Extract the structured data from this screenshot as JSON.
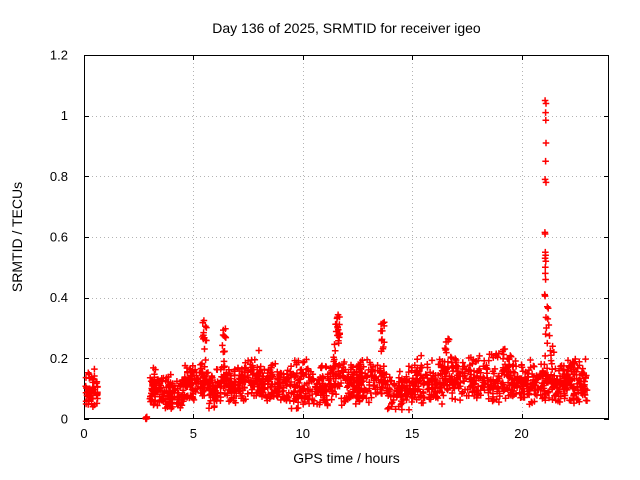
{
  "chart_data": {
    "type": "scatter",
    "title": "Day 136 of 2025, SRMTID for receiver igeo",
    "xlabel": "GPS time / hours",
    "ylabel": "SRMTID / TECUs",
    "xlim": [
      0,
      24
    ],
    "ylim": [
      0,
      1.2
    ],
    "x_ticks": [
      {
        "v": 0,
        "label": "0"
      },
      {
        "v": 5,
        "label": "5"
      },
      {
        "v": 10,
        "label": "10"
      },
      {
        "v": 15,
        "label": "15"
      },
      {
        "v": 20,
        "label": "20"
      }
    ],
    "y_ticks": [
      {
        "v": 0,
        "label": "0"
      },
      {
        "v": 0.2,
        "label": "0.2"
      },
      {
        "v": 0.4,
        "label": "0.4"
      },
      {
        "v": 0.6,
        "label": "0.6"
      },
      {
        "v": 0.8,
        "label": "0.8"
      },
      {
        "v": 1,
        "label": "1"
      },
      {
        "v": 1.2,
        "label": "1.2"
      }
    ],
    "grid": {
      "show": true,
      "color": "#b4b4b4",
      "style": "dotted"
    },
    "legend": "none",
    "marker": {
      "shape": "plus",
      "color": "#ff0000",
      "size": 7
    },
    "series": [
      {
        "name": "SRMTID",
        "description": "Dense noisy band of + markers, mostly 0.05-0.2 TECUs from 3h to 23h, small cluster 0.05-0.6h, isolated points at 0 near 2.85h, narrow spikes near 5.5h (0.32), 6.4h (0.30), 11.6h (0.35), 13.6h (0.32), 16.6h (0.27) and a large spike at 21.1h reaching 1.05",
        "seed": 1360,
        "band_segments": [
          {
            "x": [
              0.05,
              0.62
            ],
            "y": [
              0.04,
              0.17
            ],
            "n": 55
          },
          {
            "x": [
              3.0,
              3.3
            ],
            "y": [
              0.04,
              0.18
            ],
            "n": 40
          },
          {
            "x": [
              3.3,
              4.6
            ],
            "y": [
              0.03,
              0.16
            ],
            "n": 110
          },
          {
            "x": [
              4.6,
              5.3
            ],
            "y": [
              0.05,
              0.21
            ],
            "n": 60
          },
          {
            "x": [
              5.3,
              5.65
            ],
            "y": [
              0.06,
              0.2
            ],
            "n": 35,
            "tail_y": [
              0.2,
              0.325
            ],
            "tail_n": 12
          },
          {
            "x": [
              5.65,
              6.25
            ],
            "y": [
              0.03,
              0.17
            ],
            "n": 55
          },
          {
            "x": [
              6.25,
              6.55
            ],
            "y": [
              0.07,
              0.2
            ],
            "n": 30,
            "tail_y": [
              0.2,
              0.3
            ],
            "tail_n": 10
          },
          {
            "x": [
              6.55,
              7.4
            ],
            "y": [
              0.05,
              0.2
            ],
            "n": 75
          },
          {
            "x": [
              7.4,
              8.1
            ],
            "y": [
              0.06,
              0.23
            ],
            "n": 65
          },
          {
            "x": [
              8.1,
              9.2
            ],
            "y": [
              0.05,
              0.2
            ],
            "n": 95
          },
          {
            "x": [
              9.2,
              10.2
            ],
            "y": [
              0.03,
              0.21
            ],
            "n": 90
          },
          {
            "x": [
              10.2,
              11.4
            ],
            "y": [
              0.04,
              0.19
            ],
            "n": 100
          },
          {
            "x": [
              11.4,
              11.75
            ],
            "y": [
              0.08,
              0.22
            ],
            "n": 32,
            "tail_y": [
              0.22,
              0.35
            ],
            "tail_n": 20
          },
          {
            "x": [
              11.75,
              12.45
            ],
            "y": [
              0.04,
              0.2
            ],
            "n": 60
          },
          {
            "x": [
              12.45,
              13.4
            ],
            "y": [
              0.05,
              0.22
            ],
            "n": 85
          },
          {
            "x": [
              13.4,
              13.8
            ],
            "y": [
              0.06,
              0.2
            ],
            "n": 30,
            "tail_y": [
              0.2,
              0.325
            ],
            "tail_n": 12
          },
          {
            "x": [
              13.8,
              15.05
            ],
            "y": [
              0.02,
              0.18
            ],
            "n": 100
          },
          {
            "x": [
              15.05,
              16.45
            ],
            "y": [
              0.04,
              0.21
            ],
            "n": 115
          },
          {
            "x": [
              16.45,
              16.75
            ],
            "y": [
              0.07,
              0.2
            ],
            "n": 27,
            "tail_y": [
              0.2,
              0.27
            ],
            "tail_n": 8
          },
          {
            "x": [
              16.75,
              18.35
            ],
            "y": [
              0.05,
              0.23
            ],
            "n": 130
          },
          {
            "x": [
              18.35,
              19.55
            ],
            "y": [
              0.05,
              0.25
            ],
            "n": 100
          },
          {
            "x": [
              19.55,
              20.95
            ],
            "y": [
              0.04,
              0.21
            ],
            "n": 115
          },
          {
            "x": [
              20.95,
              21.4
            ],
            "y": [
              0.05,
              0.22
            ],
            "n": 40
          },
          {
            "x": [
              21.4,
              23.0
            ],
            "y": [
              0.04,
              0.21
            ],
            "n": 150
          }
        ],
        "outlier_points": [
          [
            2.82,
            0.002
          ],
          [
            2.84,
            0.0
          ],
          [
            2.85,
            0.005
          ],
          [
            2.86,
            0.002
          ],
          [
            2.87,
            0.007
          ],
          [
            2.83,
            0.004
          ],
          [
            21.08,
            1.05
          ],
          [
            21.12,
            1.04
          ],
          [
            21.1,
            1.01
          ],
          [
            21.11,
            0.985
          ],
          [
            21.12,
            0.91
          ],
          [
            21.1,
            0.85
          ],
          [
            21.08,
            0.79
          ],
          [
            21.12,
            0.78
          ],
          [
            21.07,
            0.615
          ],
          [
            21.08,
            0.61
          ],
          [
            21.09,
            0.55
          ],
          [
            21.1,
            0.54
          ],
          [
            21.08,
            0.53
          ],
          [
            21.11,
            0.52
          ],
          [
            21.09,
            0.5
          ],
          [
            21.09,
            0.48
          ],
          [
            21.1,
            0.46
          ],
          [
            21.06,
            0.41
          ],
          [
            21.08,
            0.405
          ],
          [
            21.18,
            0.37
          ],
          [
            21.22,
            0.365
          ],
          [
            21.12,
            0.335
          ],
          [
            21.2,
            0.33
          ],
          [
            21.25,
            0.31
          ],
          [
            21.14,
            0.3
          ],
          [
            21.1,
            0.28
          ],
          [
            21.28,
            0.275
          ],
          [
            21.18,
            0.25
          ],
          [
            21.32,
            0.225
          ],
          [
            21.35,
            0.21
          ],
          [
            21.42,
            0.24
          ],
          [
            21.48,
            0.22
          ]
        ]
      }
    ]
  }
}
